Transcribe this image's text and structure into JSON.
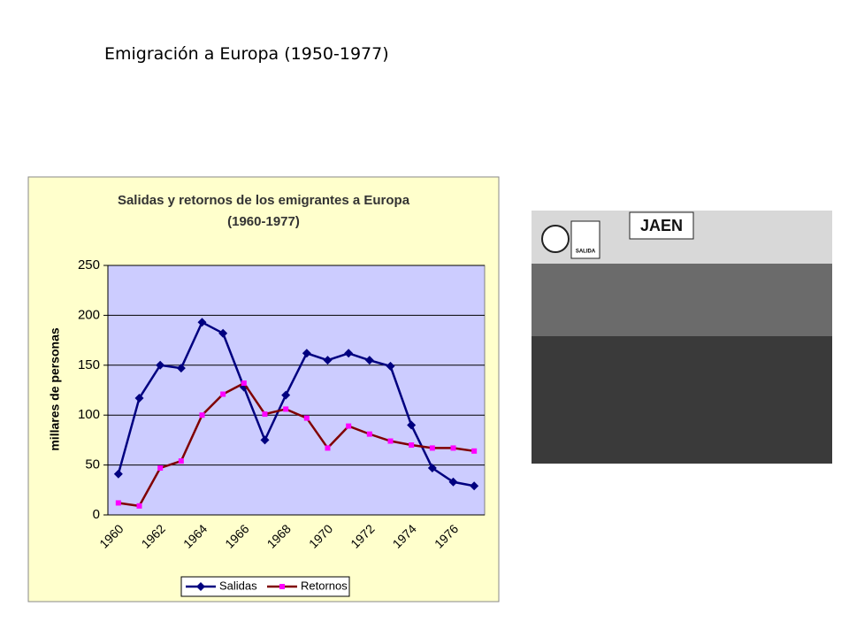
{
  "header": {
    "title": "Emigración a Europa (1950-1977)"
  },
  "photo": {
    "sign": "JAEN",
    "small_sign": "SALIDA"
  },
  "chart_data": {
    "type": "line",
    "title": "Salidas y retornos de los emigrantes a Europa",
    "subtitle": "(1960-1977)",
    "y_label": "millares de personas",
    "categories": [
      "1960",
      null,
      "1962",
      null,
      "1964",
      null,
      "1966",
      null,
      "1968",
      null,
      "1970",
      null,
      "1972",
      null,
      "1974",
      null,
      "1976",
      null
    ],
    "series": [
      {
        "name": "Salidas",
        "color": "#000080",
        "marker": "diamond",
        "values": [
          41,
          117,
          150,
          147,
          193,
          182,
          128,
          75,
          120,
          162,
          155,
          162,
          155,
          149,
          90,
          47,
          33,
          29
        ]
      },
      {
        "name": "Retornos",
        "color": "#800000",
        "marker_color": "#ff00ff",
        "marker": "square",
        "values": [
          12,
          9,
          47,
          54,
          100,
          121,
          132,
          101,
          106,
          97,
          67,
          89,
          81,
          74,
          70,
          67,
          67,
          64
        ]
      }
    ],
    "ylim": [
      0,
      250
    ],
    "yticks": [
      0,
      50,
      100,
      150,
      200,
      250
    ],
    "grid": true,
    "legend": "bottom"
  }
}
